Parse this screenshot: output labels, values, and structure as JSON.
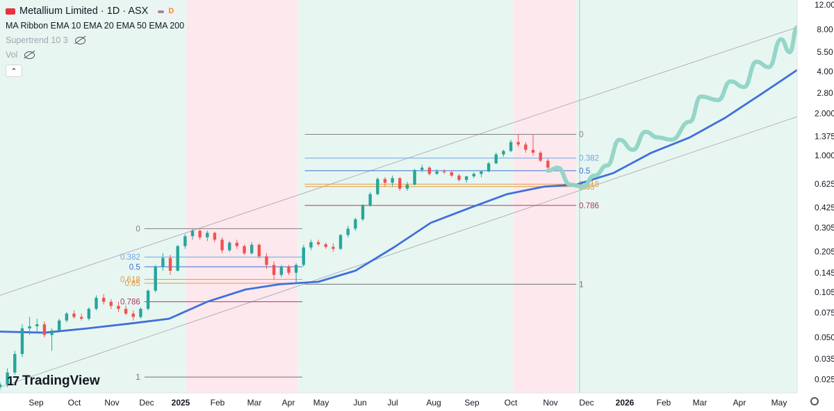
{
  "header": {
    "title": "Metallium Limited · 1D · ASX",
    "badge": "D",
    "indicators": [
      {
        "label": "MA Ribbon EMA 10 EMA 20 EMA 50 EMA 200"
      },
      {
        "label": "Supertrend 10 3"
      },
      {
        "label": "Vol"
      }
    ],
    "collapse_icon": "chevron-up-icon"
  },
  "brand": {
    "name": "TradingView",
    "icon": "tradingview-logo-icon"
  },
  "settings_icon": "gear-icon",
  "colors": {
    "bull": "#26a69a",
    "bear": "#ef5350",
    "ema200": "#3e6fdc",
    "projection": "#8fd4c4",
    "zone_green": "#e8f6f2",
    "zone_red": "#fde8ee"
  },
  "chart_data": {
    "type": "candlestick",
    "symbol": "Metallium Limited",
    "exchange": "ASX",
    "interval": "1D",
    "y_scale": "log",
    "ylim": [
      0.02,
      13
    ],
    "y_ticks": [
      "12.00",
      "8.00",
      "5.50",
      "4.00",
      "2.80",
      "2.000",
      "1.375",
      "1.000",
      "0.625",
      "0.425",
      "0.305",
      "0.205",
      "0.145",
      "0.105",
      "0.075",
      "0.050",
      "0.035",
      "0.025"
    ],
    "x_ticks": [
      "Sep",
      "Oct",
      "Nov",
      "Dec",
      "2025",
      "Feb",
      "Mar",
      "Apr",
      "May",
      "Jun",
      "Jul",
      "Aug",
      "Sep",
      "Oct",
      "Nov",
      "Dec",
      "2026",
      "Feb",
      "Mar",
      "Apr",
      "May"
    ],
    "x_ticks_bold": [
      "2025",
      "2026"
    ],
    "zones": [
      {
        "from": "2024-08-10",
        "to": "2025-01-08",
        "color": "green"
      },
      {
        "from": "2025-01-08",
        "to": "2025-04-08",
        "color": "red"
      },
      {
        "from": "2025-04-08",
        "to": "2025-09-30",
        "color": "green"
      },
      {
        "from": "2025-09-30",
        "to": "2025-11-20",
        "color": "red"
      },
      {
        "from": "2025-11-20",
        "to": "2026-05-18",
        "color": "green"
      }
    ],
    "candles": [
      {
        "x": "2024-08-10",
        "o": 0.022,
        "h": 0.024,
        "l": 0.021,
        "c": 0.023
      },
      {
        "x": "2024-08-16",
        "o": 0.023,
        "h": 0.03,
        "l": 0.022,
        "c": 0.028
      },
      {
        "x": "2024-08-22",
        "o": 0.028,
        "h": 0.04,
        "l": 0.027,
        "c": 0.038
      },
      {
        "x": "2024-08-28",
        "o": 0.038,
        "h": 0.062,
        "l": 0.036,
        "c": 0.058
      },
      {
        "x": "2024-09-03",
        "o": 0.058,
        "h": 0.07,
        "l": 0.052,
        "c": 0.06
      },
      {
        "x": "2024-09-09",
        "o": 0.06,
        "h": 0.068,
        "l": 0.054,
        "c": 0.062
      },
      {
        "x": "2024-09-15",
        "o": 0.062,
        "h": 0.065,
        "l": 0.05,
        "c": 0.052
      },
      {
        "x": "2024-09-21",
        "o": 0.052,
        "h": 0.058,
        "l": 0.04,
        "c": 0.056
      },
      {
        "x": "2024-09-27",
        "o": 0.056,
        "h": 0.068,
        "l": 0.055,
        "c": 0.066
      },
      {
        "x": "2024-10-03",
        "o": 0.066,
        "h": 0.076,
        "l": 0.064,
        "c": 0.074
      },
      {
        "x": "2024-10-09",
        "o": 0.074,
        "h": 0.078,
        "l": 0.068,
        "c": 0.07
      },
      {
        "x": "2024-10-15",
        "o": 0.07,
        "h": 0.074,
        "l": 0.066,
        "c": 0.068
      },
      {
        "x": "2024-10-21",
        "o": 0.068,
        "h": 0.082,
        "l": 0.066,
        "c": 0.08
      },
      {
        "x": "2024-10-27",
        "o": 0.08,
        "h": 0.1,
        "l": 0.078,
        "c": 0.096
      },
      {
        "x": "2024-11-02",
        "o": 0.096,
        "h": 0.102,
        "l": 0.086,
        "c": 0.09
      },
      {
        "x": "2024-11-08",
        "o": 0.09,
        "h": 0.094,
        "l": 0.08,
        "c": 0.084
      },
      {
        "x": "2024-11-14",
        "o": 0.084,
        "h": 0.09,
        "l": 0.076,
        "c": 0.08
      },
      {
        "x": "2024-11-20",
        "o": 0.08,
        "h": 0.084,
        "l": 0.072,
        "c": 0.074
      },
      {
        "x": "2024-11-26",
        "o": 0.074,
        "h": 0.078,
        "l": 0.066,
        "c": 0.07
      },
      {
        "x": "2024-12-02",
        "o": 0.07,
        "h": 0.082,
        "l": 0.068,
        "c": 0.08
      },
      {
        "x": "2024-12-08",
        "o": 0.08,
        "h": 0.11,
        "l": 0.078,
        "c": 0.108
      },
      {
        "x": "2024-12-14",
        "o": 0.108,
        "h": 0.165,
        "l": 0.105,
        "c": 0.16
      },
      {
        "x": "2024-12-20",
        "o": 0.16,
        "h": 0.2,
        "l": 0.15,
        "c": 0.185
      },
      {
        "x": "2024-12-26",
        "o": 0.185,
        "h": 0.195,
        "l": 0.14,
        "c": 0.15
      },
      {
        "x": "2025-01-01",
        "o": 0.15,
        "h": 0.23,
        "l": 0.148,
        "c": 0.225
      },
      {
        "x": "2025-01-07",
        "o": 0.225,
        "h": 0.275,
        "l": 0.215,
        "c": 0.265
      },
      {
        "x": "2025-01-13",
        "o": 0.265,
        "h": 0.3,
        "l": 0.25,
        "c": 0.29
      },
      {
        "x": "2025-01-19",
        "o": 0.29,
        "h": 0.295,
        "l": 0.25,
        "c": 0.26
      },
      {
        "x": "2025-01-25",
        "o": 0.26,
        "h": 0.29,
        "l": 0.245,
        "c": 0.28
      },
      {
        "x": "2025-01-31",
        "o": 0.28,
        "h": 0.285,
        "l": 0.24,
        "c": 0.25
      },
      {
        "x": "2025-02-06",
        "o": 0.25,
        "h": 0.26,
        "l": 0.2,
        "c": 0.21
      },
      {
        "x": "2025-02-12",
        "o": 0.21,
        "h": 0.245,
        "l": 0.205,
        "c": 0.238
      },
      {
        "x": "2025-02-18",
        "o": 0.238,
        "h": 0.25,
        "l": 0.215,
        "c": 0.225
      },
      {
        "x": "2025-02-24",
        "o": 0.225,
        "h": 0.23,
        "l": 0.195,
        "c": 0.2
      },
      {
        "x": "2025-03-02",
        "o": 0.2,
        "h": 0.24,
        "l": 0.195,
        "c": 0.23
      },
      {
        "x": "2025-03-08",
        "o": 0.23,
        "h": 0.235,
        "l": 0.185,
        "c": 0.19
      },
      {
        "x": "2025-03-14",
        "o": 0.19,
        "h": 0.2,
        "l": 0.155,
        "c": 0.165
      },
      {
        "x": "2025-03-20",
        "o": 0.165,
        "h": 0.175,
        "l": 0.13,
        "c": 0.14
      },
      {
        "x": "2025-03-26",
        "o": 0.14,
        "h": 0.165,
        "l": 0.135,
        "c": 0.16
      },
      {
        "x": "2025-04-01",
        "o": 0.16,
        "h": 0.165,
        "l": 0.14,
        "c": 0.145
      },
      {
        "x": "2025-04-07",
        "o": 0.145,
        "h": 0.17,
        "l": 0.12,
        "c": 0.165
      },
      {
        "x": "2025-04-13",
        "o": 0.165,
        "h": 0.23,
        "l": 0.16,
        "c": 0.22
      },
      {
        "x": "2025-04-19",
        "o": 0.22,
        "h": 0.25,
        "l": 0.21,
        "c": 0.24
      },
      {
        "x": "2025-04-25",
        "o": 0.24,
        "h": 0.25,
        "l": 0.225,
        "c": 0.232
      },
      {
        "x": "2025-05-01",
        "o": 0.232,
        "h": 0.238,
        "l": 0.215,
        "c": 0.222
      },
      {
        "x": "2025-05-07",
        "o": 0.222,
        "h": 0.235,
        "l": 0.205,
        "c": 0.215
      },
      {
        "x": "2025-05-13",
        "o": 0.215,
        "h": 0.275,
        "l": 0.212,
        "c": 0.27
      },
      {
        "x": "2025-05-19",
        "o": 0.27,
        "h": 0.315,
        "l": 0.26,
        "c": 0.3
      },
      {
        "x": "2025-05-25",
        "o": 0.3,
        "h": 0.36,
        "l": 0.29,
        "c": 0.35
      },
      {
        "x": "2025-05-31",
        "o": 0.35,
        "h": 0.45,
        "l": 0.34,
        "c": 0.44
      },
      {
        "x": "2025-06-06",
        "o": 0.44,
        "h": 0.55,
        "l": 0.43,
        "c": 0.53
      },
      {
        "x": "2025-06-12",
        "o": 0.53,
        "h": 0.7,
        "l": 0.52,
        "c": 0.68
      },
      {
        "x": "2025-06-18",
        "o": 0.68,
        "h": 0.7,
        "l": 0.6,
        "c": 0.64
      },
      {
        "x": "2025-06-24",
        "o": 0.64,
        "h": 0.72,
        "l": 0.6,
        "c": 0.69
      },
      {
        "x": "2025-06-30",
        "o": 0.69,
        "h": 0.7,
        "l": 0.56,
        "c": 0.58
      },
      {
        "x": "2025-07-06",
        "o": 0.58,
        "h": 0.65,
        "l": 0.56,
        "c": 0.62
      },
      {
        "x": "2025-07-12",
        "o": 0.62,
        "h": 0.8,
        "l": 0.61,
        "c": 0.79
      },
      {
        "x": "2025-07-18",
        "o": 0.79,
        "h": 0.86,
        "l": 0.76,
        "c": 0.82
      },
      {
        "x": "2025-07-24",
        "o": 0.82,
        "h": 0.84,
        "l": 0.72,
        "c": 0.74
      },
      {
        "x": "2025-07-30",
        "o": 0.74,
        "h": 0.8,
        "l": 0.73,
        "c": 0.77
      },
      {
        "x": "2025-08-05",
        "o": 0.77,
        "h": 0.8,
        "l": 0.74,
        "c": 0.76
      },
      {
        "x": "2025-08-11",
        "o": 0.76,
        "h": 0.78,
        "l": 0.7,
        "c": 0.72
      },
      {
        "x": "2025-08-17",
        "o": 0.72,
        "h": 0.74,
        "l": 0.65,
        "c": 0.67
      },
      {
        "x": "2025-08-23",
        "o": 0.67,
        "h": 0.72,
        "l": 0.64,
        "c": 0.71
      },
      {
        "x": "2025-08-29",
        "o": 0.71,
        "h": 0.76,
        "l": 0.69,
        "c": 0.74
      },
      {
        "x": "2025-09-04",
        "o": 0.74,
        "h": 0.78,
        "l": 0.7,
        "c": 0.77
      },
      {
        "x": "2025-09-10",
        "o": 0.77,
        "h": 0.9,
        "l": 0.76,
        "c": 0.88
      },
      {
        "x": "2025-09-16",
        "o": 0.88,
        "h": 1.05,
        "l": 0.87,
        "c": 1.02
      },
      {
        "x": "2025-09-22",
        "o": 1.02,
        "h": 1.1,
        "l": 0.98,
        "c": 1.08
      },
      {
        "x": "2025-09-28",
        "o": 1.08,
        "h": 1.3,
        "l": 1.06,
        "c": 1.25
      },
      {
        "x": "2025-10-04",
        "o": 1.25,
        "h": 1.42,
        "l": 1.15,
        "c": 1.2
      },
      {
        "x": "2025-10-10",
        "o": 1.2,
        "h": 1.25,
        "l": 1.05,
        "c": 1.1
      },
      {
        "x": "2025-10-16",
        "o": 1.1,
        "h": 1.42,
        "l": 1.0,
        "c": 1.05
      },
      {
        "x": "2025-10-22",
        "o": 1.05,
        "h": 1.08,
        "l": 0.9,
        "c": 0.92
      },
      {
        "x": "2025-10-28",
        "o": 0.92,
        "h": 0.95,
        "l": 0.8,
        "c": 0.82
      }
    ],
    "ema200": [
      {
        "x": "2024-08-10",
        "y": 0.055
      },
      {
        "x": "2024-09-15",
        "y": 0.054
      },
      {
        "x": "2024-10-20",
        "y": 0.058
      },
      {
        "x": "2024-11-25",
        "y": 0.063
      },
      {
        "x": "2024-12-25",
        "y": 0.068
      },
      {
        "x": "2025-01-25",
        "y": 0.09
      },
      {
        "x": "2025-02-25",
        "y": 0.11
      },
      {
        "x": "2025-03-25",
        "y": 0.12
      },
      {
        "x": "2025-04-25",
        "y": 0.125
      },
      {
        "x": "2025-05-25",
        "y": 0.15
      },
      {
        "x": "2025-06-25",
        "y": 0.22
      },
      {
        "x": "2025-07-25",
        "y": 0.33
      },
      {
        "x": "2025-08-25",
        "y": 0.42
      },
      {
        "x": "2025-09-25",
        "y": 0.53
      },
      {
        "x": "2025-10-25",
        "y": 0.6
      },
      {
        "x": "2025-11-20",
        "y": 0.62
      },
      {
        "x": "2025-12-20",
        "y": 0.75
      },
      {
        "x": "2026-01-20",
        "y": 1.05
      },
      {
        "x": "2026-02-20",
        "y": 1.35
      },
      {
        "x": "2026-03-20",
        "y": 1.85
      },
      {
        "x": "2026-04-20",
        "y": 2.8
      },
      {
        "x": "2026-05-18",
        "y": 4.1
      }
    ],
    "projection": [
      {
        "x": "2025-10-28",
        "y": 0.78
      },
      {
        "x": "2025-11-05",
        "y": 0.82
      },
      {
        "x": "2025-11-15",
        "y": 0.62
      },
      {
        "x": "2025-11-25",
        "y": 0.6
      },
      {
        "x": "2025-12-05",
        "y": 0.72
      },
      {
        "x": "2025-12-15",
        "y": 0.85
      },
      {
        "x": "2025-12-25",
        "y": 1.3
      },
      {
        "x": "2026-01-05",
        "y": 1.1
      },
      {
        "x": "2026-01-15",
        "y": 1.48
      },
      {
        "x": "2026-01-25",
        "y": 1.35
      },
      {
        "x": "2026-02-05",
        "y": 1.3
      },
      {
        "x": "2026-02-20",
        "y": 1.75
      },
      {
        "x": "2026-03-01",
        "y": 2.65
      },
      {
        "x": "2026-03-15",
        "y": 2.5
      },
      {
        "x": "2026-03-25",
        "y": 3.4
      },
      {
        "x": "2026-04-05",
        "y": 3.1
      },
      {
        "x": "2026-04-15",
        "y": 4.7
      },
      {
        "x": "2026-04-25",
        "y": 4.3
      },
      {
        "x": "2026-05-05",
        "y": 6.8
      },
      {
        "x": "2026-05-12",
        "y": 5.5
      },
      {
        "x": "2026-05-18",
        "y": 8.3
      }
    ],
    "channel": [
      {
        "from": {
          "x": "2024-08-10",
          "y": 0.1
        },
        "to": {
          "x": "2026-05-18",
          "y": 8.3
        }
      },
      {
        "from": {
          "x": "2024-08-10",
          "y": 0.022
        },
        "to": {
          "x": "2026-05-18",
          "y": 1.9
        }
      }
    ],
    "fib_retracements": [
      {
        "from": "2024-12-05",
        "to": "2025-04-12",
        "high": 0.3,
        "low": 0.026,
        "levels": [
          {
            "label": "0",
            "y": 0.3
          },
          {
            "label": "0.382",
            "y": 0.188
          },
          {
            "label": "0.5",
            "y": 0.16
          },
          {
            "label": "0.618",
            "y": 0.13
          },
          {
            "label": "0.65",
            "y": 0.122
          },
          {
            "label": "0.786",
            "y": 0.09
          },
          {
            "label": "1",
            "y": 0.026
          }
        ]
      },
      {
        "from": "2025-04-14",
        "to": "2025-11-20",
        "high": 1.42,
        "low": 0.12,
        "levels": [
          {
            "label": "0",
            "y": 1.42
          },
          {
            "label": "0.382",
            "y": 0.96
          },
          {
            "label": "0.5",
            "y": 0.78
          },
          {
            "label": "0.618",
            "y": 0.625
          },
          {
            "label": "0.65",
            "y": 0.6
          },
          {
            "label": "0.786",
            "y": 0.44
          },
          {
            "label": "1",
            "y": 0.12
          }
        ]
      }
    ]
  }
}
